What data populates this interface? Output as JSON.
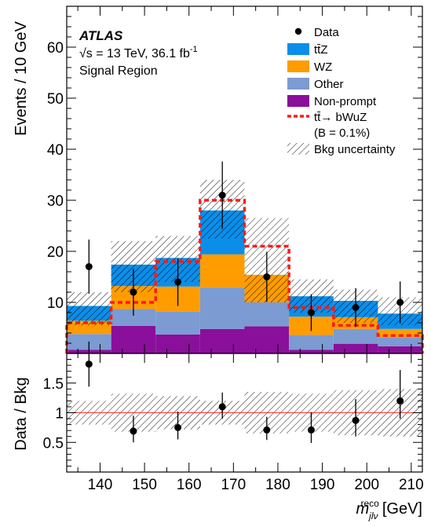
{
  "chart_data": [
    {
      "type": "histogram-stacked",
      "x_edges": [
        132.5,
        142.5,
        152.5,
        162.5,
        172.5,
        182.5,
        192.5,
        202.5,
        212.5
      ],
      "ylabel": "Events / 10 GeV",
      "ylim": [
        0,
        68
      ],
      "yticks": [
        10,
        20,
        30,
        40,
        50,
        60
      ],
      "labels": {
        "experiment": "ATLAS",
        "energy": "√s = 13 TeV, 36.1 fb",
        "energy_sup": "-1",
        "region": "Signal Region"
      },
      "series": [
        {
          "name": "Non-prompt",
          "color": "#8a0f9b",
          "values": [
            0.7,
            5.4,
            3.7,
            4.8,
            5.3,
            0.7,
            1.9,
            1.4
          ]
        },
        {
          "name": "Other",
          "color": "#7b9bd2",
          "values": [
            3.1,
            3.3,
            4.5,
            8.1,
            4.7,
            2.9,
            2.9,
            1.8
          ]
        },
        {
          "name": "WZ",
          "color": "#ff9c00",
          "values": [
            2.6,
            4.5,
            4.9,
            6.5,
            5.4,
            3.6,
            2.3,
            1.6
          ]
        },
        {
          "name": "tt̄Z",
          "color": "#0b8eea",
          "values": [
            2.9,
            4.2,
            5.6,
            8.6,
            0.0,
            4.0,
            3.2,
            3.0
          ]
        }
      ],
      "bkg_uncertainty": {
        "name": "Bkg uncertainty",
        "up": [
          12.0,
          22.0,
          23.0,
          34.0,
          26.5,
          14.5,
          12.5,
          11.0
        ],
        "down": [
          5.5,
          12.0,
          14.0,
          22.5,
          10.0,
          8.0,
          6.0,
          5.5
        ]
      },
      "signal": {
        "name": "tt̄→ bWuZ",
        "note": "(B = 0.1%)",
        "color": "#ff1a1a",
        "values": [
          6.0,
          10.0,
          18.0,
          30.0,
          21.0,
          9.0,
          5.5,
          3.5
        ]
      },
      "data": {
        "name": "Data",
        "x": [
          137.5,
          147.5,
          157.5,
          167.5,
          177.5,
          187.5,
          197.5,
          207.5
        ],
        "y": [
          17,
          12,
          14,
          31,
          15,
          8,
          9,
          10
        ],
        "err": [
          5.3,
          4.6,
          4.7,
          6.6,
          4.9,
          3.6,
          3.8,
          4.1
        ]
      },
      "legend": {
        "placement": "top-right",
        "entries": [
          "Data",
          "tt̄Z",
          "WZ",
          "Other",
          "Non-prompt",
          "tt̄→ bWuZ",
          "(B = 0.1%)",
          "Bkg uncertainty"
        ]
      }
    },
    {
      "type": "ratio",
      "ylabel": "Data / Bkg",
      "ylim": [
        0,
        2.0
      ],
      "yticks": [
        0.5,
        1,
        1.5
      ],
      "ytick_labels": [
        "0.5",
        "1",
        "1.5"
      ],
      "xlabel": "m",
      "xlabel_sup": "reco",
      "xlabel_sub": "jlν",
      "xlabel_unit": "[GeV]",
      "xticks": [
        140,
        150,
        160,
        170,
        180,
        190,
        200,
        210
      ],
      "xtick_labels": [
        "140",
        "150",
        "160",
        "170",
        "180",
        "190",
        "200",
        "210"
      ],
      "x": [
        137.5,
        147.5,
        157.5,
        167.5,
        177.5,
        187.5,
        197.5,
        207.5
      ],
      "y": [
        1.82,
        0.69,
        0.75,
        1.1,
        0.71,
        0.71,
        0.87,
        1.2
      ],
      "err_up": [
        0.38,
        0.26,
        0.27,
        0.24,
        0.22,
        0.3,
        0.36,
        0.52
      ],
      "err_down": [
        0.38,
        0.19,
        0.2,
        0.2,
        0.17,
        0.22,
        0.27,
        0.3
      ],
      "band_up": [
        1.2,
        1.32,
        1.28,
        1.2,
        1.35,
        1.32,
        1.38,
        1.4
      ],
      "band_down": [
        0.8,
        0.68,
        0.72,
        0.8,
        0.65,
        0.68,
        0.62,
        0.6
      ],
      "reference_line": 1,
      "reference_color": "#ff3333"
    }
  ]
}
